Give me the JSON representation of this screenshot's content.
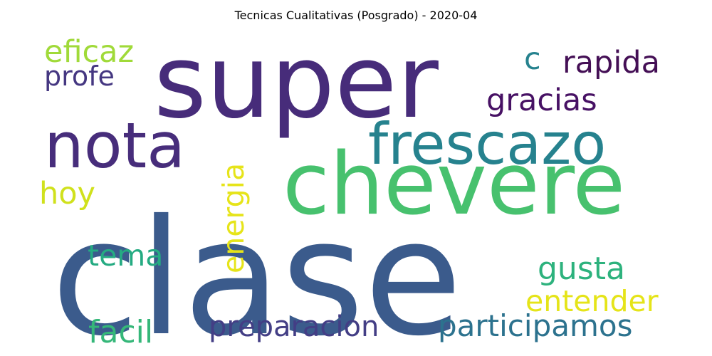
{
  "title": "Tecnicas Cualitativas (Posgrado) - 2020-04",
  "words": [
    {
      "text": "clase",
      "color": "#3b5b8c"
    },
    {
      "text": "super",
      "color": "#472c7a"
    },
    {
      "text": "chevere",
      "color": "#47c16e"
    },
    {
      "text": "frescazo",
      "color": "#26828e"
    },
    {
      "text": "nota",
      "color": "#472d7b"
    },
    {
      "text": "eficaz",
      "color": "#a0da39"
    },
    {
      "text": "profe",
      "color": "#453781"
    },
    {
      "text": "c",
      "color": "#26828e"
    },
    {
      "text": "rapida",
      "color": "#440f55"
    },
    {
      "text": "gracias",
      "color": "#471164"
    },
    {
      "text": "energia",
      "color": "#e6e419"
    },
    {
      "text": "hoy",
      "color": "#d0e11c"
    },
    {
      "text": "tema",
      "color": "#25ab82"
    },
    {
      "text": "gusta",
      "color": "#2db27d"
    },
    {
      "text": "entender",
      "color": "#e5e419"
    },
    {
      "text": "facil",
      "color": "#35b779"
    },
    {
      "text": "preparacion",
      "color": "#433e85"
    },
    {
      "text": "participamos",
      "color": "#2c728e"
    }
  ]
}
